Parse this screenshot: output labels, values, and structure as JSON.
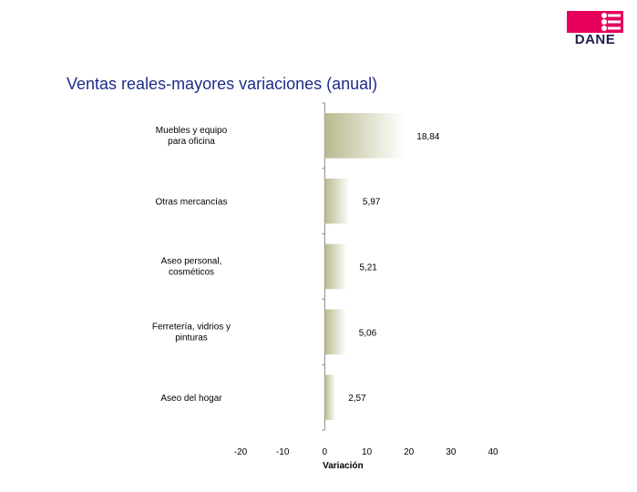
{
  "logo": {
    "text": "DANE",
    "icon": "dane-logo-icon",
    "color": "#e6005c"
  },
  "chart_data": {
    "type": "bar",
    "orientation": "horizontal",
    "title": "Ventas reales-mayores variaciones (anual)",
    "categories": [
      [
        "Muebles y equipo",
        "para oficina"
      ],
      [
        "Otras mercancías"
      ],
      [
        "Aseo personal,",
        "cosméticos"
      ],
      [
        "Ferretería, vidrios y",
        "pinturas"
      ],
      [
        "Aseo del  hogar"
      ]
    ],
    "values": [
      18.84,
      5.97,
      5.21,
      5.06,
      2.57
    ],
    "value_labels": [
      "18,84",
      "5,97",
      "5,21",
      "5,06",
      "2,57"
    ],
    "xlabel": "Variación",
    "xlim": [
      -20,
      40
    ],
    "xticks": [
      -20,
      -10,
      0,
      10,
      20,
      30,
      40
    ],
    "xtick_labels": [
      "-20",
      "-10",
      "0",
      "10",
      "20",
      "30",
      "40"
    ],
    "grid": false,
    "legend": "none",
    "bar_gradient": [
      "#b9b98f",
      "#ffffff"
    ]
  }
}
